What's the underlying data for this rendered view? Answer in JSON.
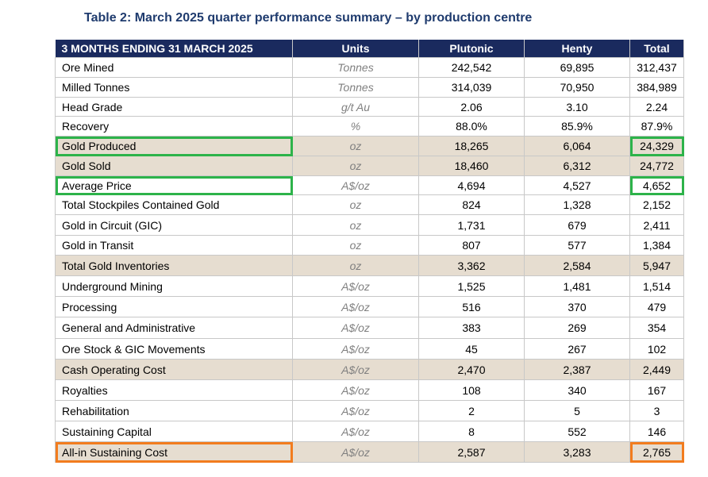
{
  "title": "Table 2: March 2025 quarter performance summary – by production centre",
  "headers": [
    "3 MONTHS ENDING 31 MARCH 2025",
    "Units",
    "Plutonic",
    "Henty",
    "Total"
  ],
  "colors": {
    "header_bg": "#1a2a5e",
    "shaded_row": "#e6ddd0",
    "green_highlight": "#2db34a",
    "orange_highlight": "#f27c1e"
  },
  "rows": [
    {
      "label": "Ore Mined",
      "unit": "Tonnes",
      "plutonic": "242,542",
      "henty": "69,895",
      "total": "312,437"
    },
    {
      "label": "Milled Tonnes",
      "unit": "Tonnes",
      "plutonic": "314,039",
      "henty": "70,950",
      "total": "384,989"
    },
    {
      "label": "Head Grade",
      "unit": "g/t Au",
      "plutonic": "2.06",
      "henty": "3.10",
      "total": "2.24"
    },
    {
      "label": "Recovery",
      "unit": "%",
      "plutonic": "88.0%",
      "henty": "85.9%",
      "total": "87.9%"
    },
    {
      "label": "Gold Produced",
      "unit": "oz",
      "plutonic": "18,265",
      "henty": "6,064",
      "total": "24,329"
    },
    {
      "label": "Gold Sold",
      "unit": "oz",
      "plutonic": "18,460",
      "henty": "6,312",
      "total": "24,772"
    },
    {
      "label": "Average Price",
      "unit": "A$/oz",
      "plutonic": "4,694",
      "henty": "4,527",
      "total": "4,652"
    },
    {
      "label": "Total Stockpiles Contained Gold",
      "unit": "oz",
      "plutonic": "824",
      "henty": "1,328",
      "total": "2,152"
    },
    {
      "label": "Gold in Circuit (GIC)",
      "unit": "oz",
      "plutonic": "1,731",
      "henty": "679",
      "total": "2,411"
    },
    {
      "label": "Gold in Transit",
      "unit": "oz",
      "plutonic": "807",
      "henty": "577",
      "total": "1,384"
    },
    {
      "label": "Total Gold Inventories",
      "unit": "oz",
      "plutonic": "3,362",
      "henty": "2,584",
      "total": "5,947"
    },
    {
      "label": "Underground Mining",
      "unit": "A$/oz",
      "plutonic": "1,525",
      "henty": "1,481",
      "total": "1,514"
    },
    {
      "label": "Processing",
      "unit": "A$/oz",
      "plutonic": "516",
      "henty": "370",
      "total": "479"
    },
    {
      "label": "General and Administrative",
      "unit": "A$/oz",
      "plutonic": "383",
      "henty": "269",
      "total": "354"
    },
    {
      "label": "Ore Stock & GIC Movements",
      "unit": "A$/oz",
      "plutonic": "45",
      "henty": "267",
      "total": "102"
    },
    {
      "label": "Cash Operating Cost",
      "unit": "A$/oz",
      "plutonic": "2,470",
      "henty": "2,387",
      "total": "2,449"
    },
    {
      "label": "Royalties",
      "unit": "A$/oz",
      "plutonic": "108",
      "henty": "340",
      "total": "167"
    },
    {
      "label": "Rehabilitation",
      "unit": "A$/oz",
      "plutonic": "2",
      "henty": "5",
      "total": "3"
    },
    {
      "label": "Sustaining Capital",
      "unit": "A$/oz",
      "plutonic": "8",
      "henty": "552",
      "total": "146"
    },
    {
      "label": "All-in Sustaining Cost",
      "unit": "A$/oz",
      "plutonic": "2,587",
      "henty": "3,283",
      "total": "2,765"
    }
  ]
}
